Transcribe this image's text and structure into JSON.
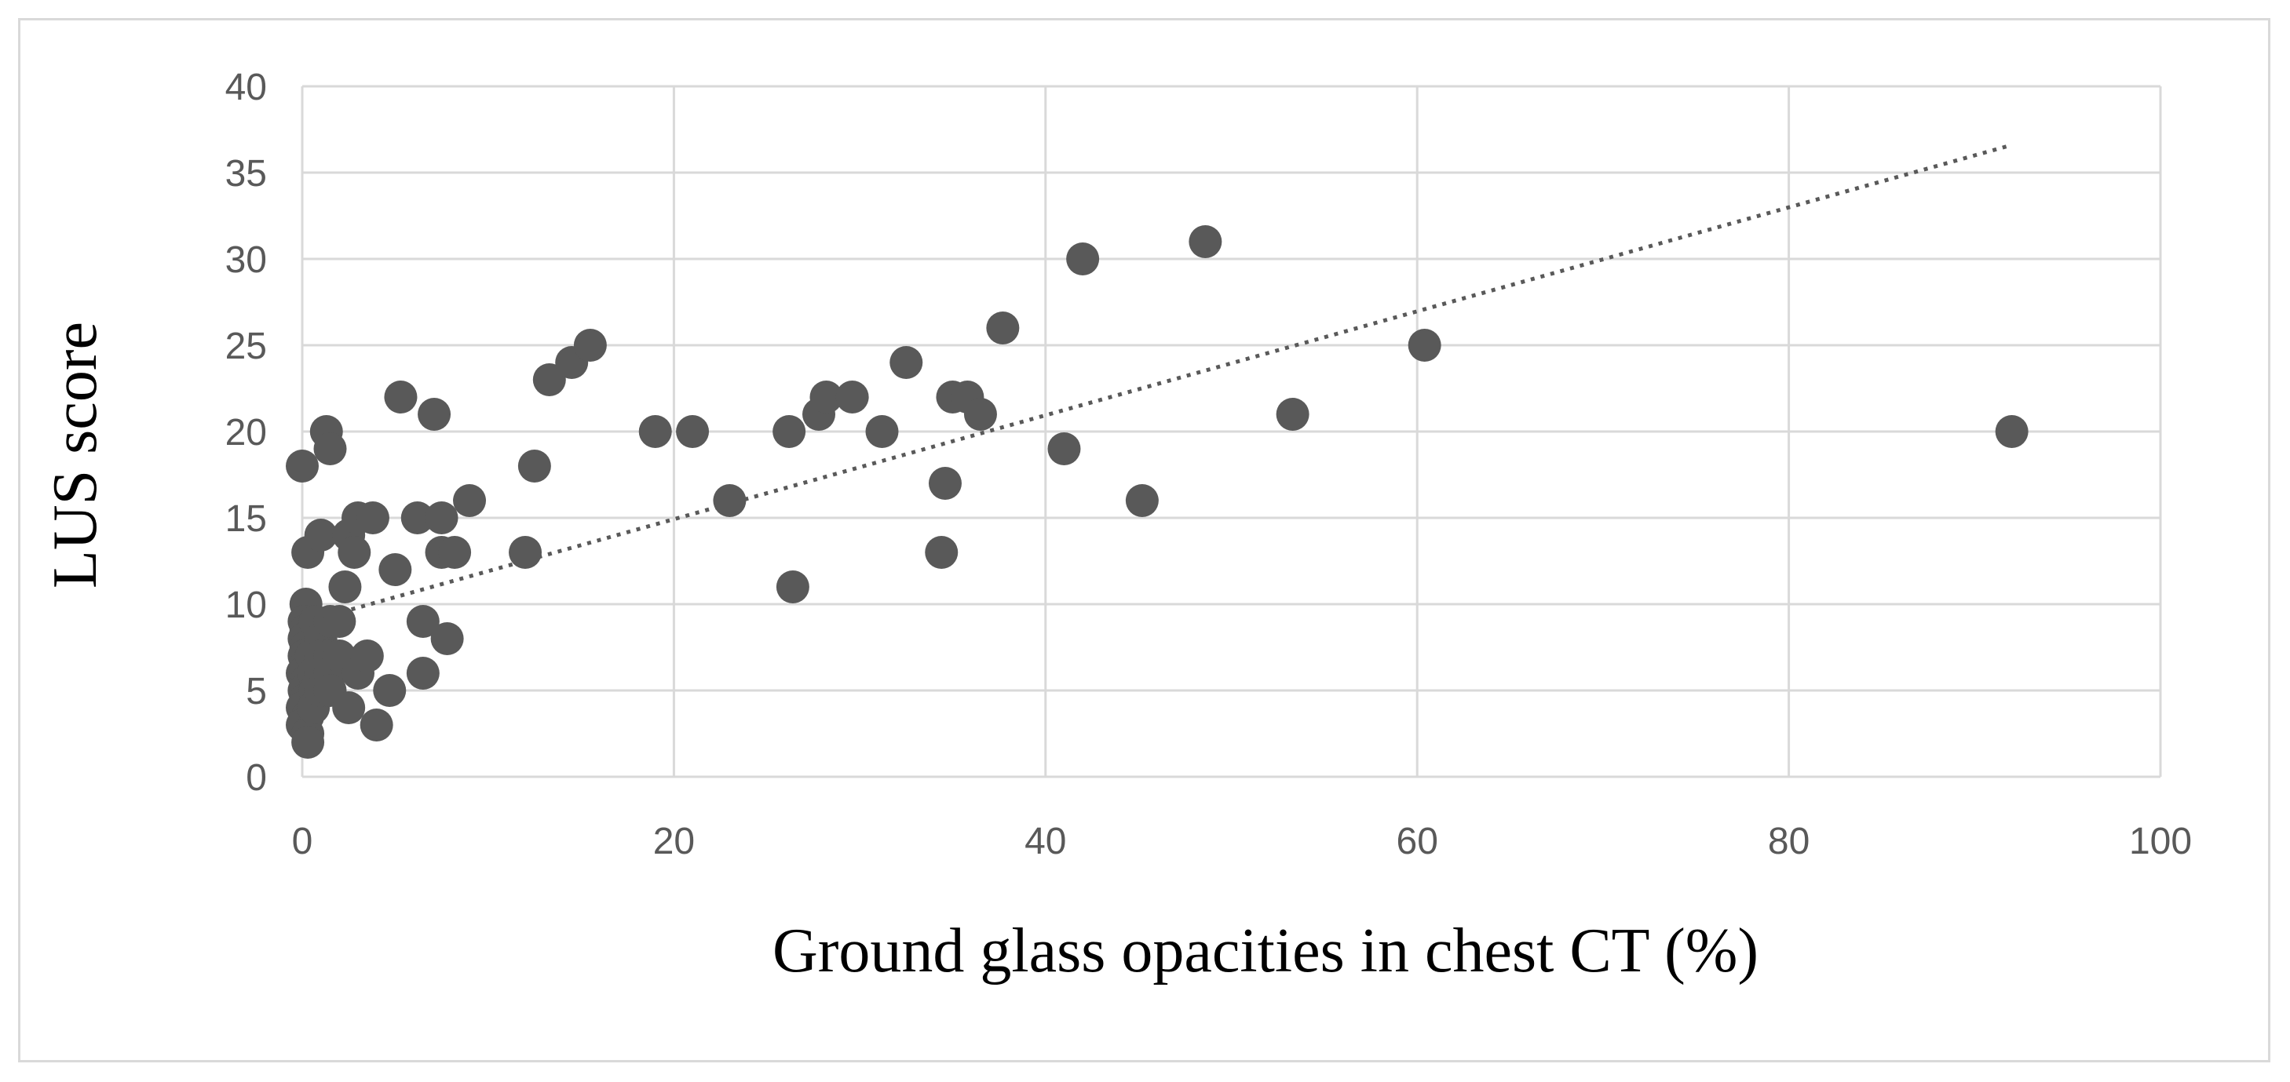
{
  "chart_data": {
    "type": "scatter",
    "title": "",
    "xlabel": "Ground glass opacities in chest CT (%)",
    "ylabel": "LUS score",
    "xlim": [
      0,
      100
    ],
    "ylim": [
      0,
      40
    ],
    "xticks": [
      0,
      20,
      40,
      60,
      80,
      100
    ],
    "yticks": [
      0,
      5,
      10,
      15,
      20,
      25,
      30,
      35,
      40
    ],
    "grid": true,
    "legend": "none",
    "colors": {
      "marker": "#595959",
      "trendline": "#595959",
      "grid": "#d9d9d9",
      "frame": "#d9d9d9",
      "tick_text": "#595959",
      "axis_title": "#000000"
    },
    "trendline": {
      "type": "linear",
      "style": "dotted",
      "x": [
        0,
        92
      ],
      "y": [
        8.9,
        36.6
      ]
    },
    "series": [
      {
        "name": "LUS score",
        "points": [
          [
            0,
            18
          ],
          [
            0.3,
            13
          ],
          [
            0.2,
            10
          ],
          [
            0.1,
            9
          ],
          [
            0.2,
            8.5
          ],
          [
            0.1,
            8
          ],
          [
            0.2,
            7.5
          ],
          [
            0.1,
            7
          ],
          [
            0.2,
            6.5
          ],
          [
            0,
            6
          ],
          [
            0.2,
            5.5
          ],
          [
            0.1,
            5
          ],
          [
            0.2,
            4.5
          ],
          [
            0,
            4
          ],
          [
            0.3,
            3.5
          ],
          [
            0,
            3
          ],
          [
            0.3,
            2.5
          ],
          [
            0.3,
            2
          ],
          [
            0.7,
            9
          ],
          [
            0.5,
            7
          ],
          [
            0.6,
            6
          ],
          [
            0.7,
            5
          ],
          [
            0.6,
            4
          ],
          [
            1,
            14
          ],
          [
            1.3,
            20
          ],
          [
            1.5,
            19
          ],
          [
            1,
            8
          ],
          [
            1,
            7
          ],
          [
            1,
            6
          ],
          [
            1,
            5
          ],
          [
            1.5,
            9
          ],
          [
            1.5,
            7
          ],
          [
            1.5,
            6
          ],
          [
            1.5,
            5
          ],
          [
            2,
            9
          ],
          [
            2,
            7
          ],
          [
            2.3,
            11
          ],
          [
            2.5,
            14
          ],
          [
            2.5,
            4
          ],
          [
            2.8,
            13
          ],
          [
            3,
            15
          ],
          [
            3,
            6
          ],
          [
            3.5,
            7
          ],
          [
            3.8,
            15
          ],
          [
            4,
            3
          ],
          [
            4.7,
            5
          ],
          [
            5,
            12
          ],
          [
            5.3,
            22
          ],
          [
            6.2,
            15
          ],
          [
            6.5,
            9
          ],
          [
            6.5,
            6
          ],
          [
            7.1,
            21
          ],
          [
            7.5,
            15
          ],
          [
            7.5,
            13
          ],
          [
            7.8,
            8
          ],
          [
            8.2,
            13
          ],
          [
            9,
            16
          ],
          [
            12,
            13
          ],
          [
            12.5,
            18
          ],
          [
            13.3,
            23
          ],
          [
            14.5,
            24
          ],
          [
            15.5,
            25
          ],
          [
            19,
            20
          ],
          [
            21,
            20
          ],
          [
            23,
            16
          ],
          [
            26.2,
            20
          ],
          [
            26.4,
            11
          ],
          [
            27.8,
            21
          ],
          [
            28.2,
            22
          ],
          [
            29.6,
            22
          ],
          [
            31.2,
            20
          ],
          [
            32.5,
            24
          ],
          [
            34.4,
            13
          ],
          [
            34.6,
            17
          ],
          [
            35,
            22
          ],
          [
            35.8,
            22
          ],
          [
            36.5,
            21
          ],
          [
            37.7,
            26
          ],
          [
            41,
            19
          ],
          [
            42,
            30
          ],
          [
            45.2,
            16
          ],
          [
            48.6,
            31
          ],
          [
            53.3,
            21
          ],
          [
            60.4,
            25
          ],
          [
            92,
            20
          ]
        ]
      }
    ]
  }
}
